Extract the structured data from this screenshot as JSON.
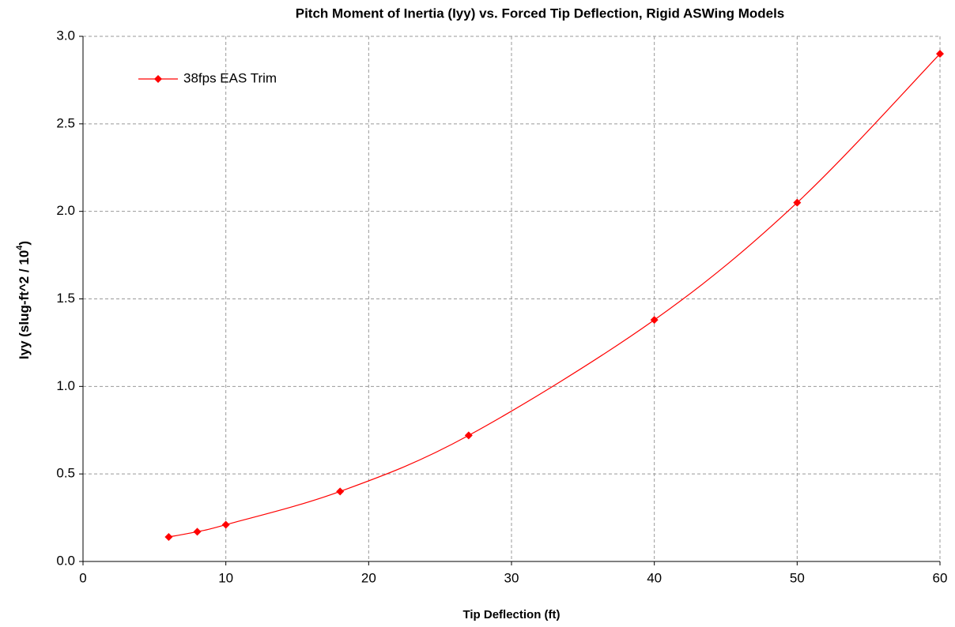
{
  "chart_data": {
    "type": "line",
    "title": "Pitch Moment of Inertia (Iyy) vs. Forced Tip Deflection, Rigid ASWing Models",
    "x_label": "Tip Deflection (ft)",
    "y_label": "Iyy (slug-ft^2 / 10",
    "y_label_sup": "4",
    "y_label_end": ")",
    "x": [
      6,
      8,
      10,
      18,
      27,
      40,
      50,
      60
    ],
    "series": [
      {
        "name": "38fps EAS Trim",
        "color": "#ff0000",
        "values": [
          0.14,
          0.17,
          0.21,
          0.4,
          0.72,
          1.38,
          2.05,
          2.9
        ]
      }
    ],
    "xlim": [
      0,
      60
    ],
    "xticks": [
      0,
      10,
      20,
      30,
      40,
      50,
      60
    ],
    "ylim": [
      0,
      3
    ],
    "yticks": [
      {
        "value": 0,
        "label": "0.0"
      },
      0.5,
      {
        "value": 1,
        "label": "1.0"
      },
      1.5,
      {
        "value": 2,
        "label": "2.0"
      },
      2.5,
      {
        "value": 3,
        "label": "3.0"
      }
    ],
    "grid": true,
    "legend": "upper left",
    "smooth": true
  }
}
